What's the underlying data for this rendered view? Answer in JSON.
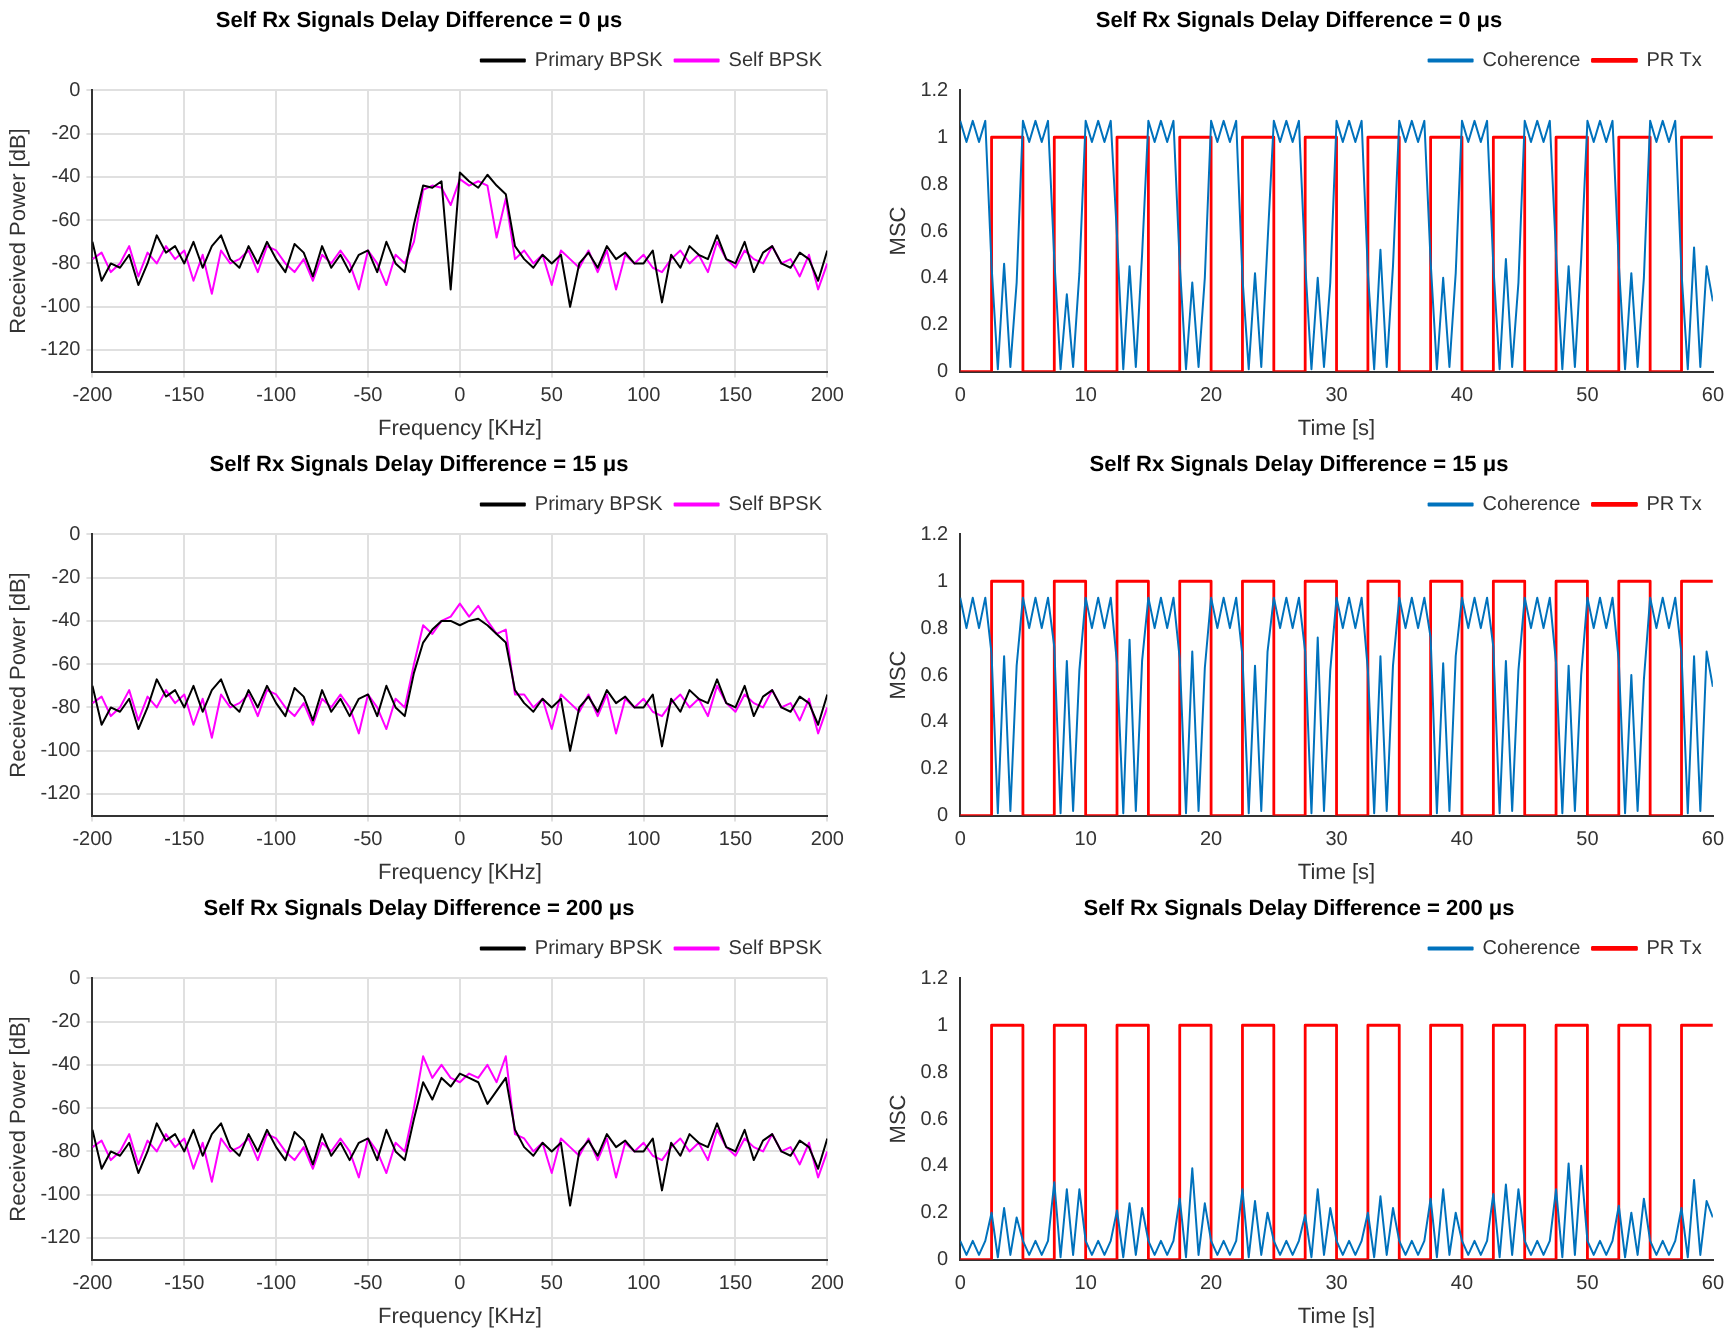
{
  "chart_data": [
    {
      "type": "line",
      "title": "Self Rx Signals Delay Difference = 0 μs",
      "xlabel": "Frequency [KHz]",
      "ylabel": "Received Power [dB]",
      "legend": "top right",
      "grid": true,
      "x": [
        -200,
        -195,
        -190,
        -185,
        -180,
        -175,
        -170,
        -165,
        -160,
        -155,
        -150,
        -145,
        -140,
        -135,
        -130,
        -125,
        -120,
        -115,
        -110,
        -105,
        -100,
        -95,
        -90,
        -85,
        -80,
        -75,
        -70,
        -65,
        -60,
        -55,
        -50,
        -45,
        -40,
        -35,
        -30,
        -25,
        -20,
        -15,
        -10,
        -5,
        0,
        5,
        10,
        15,
        20,
        25,
        30,
        35,
        40,
        45,
        50,
        55,
        60,
        65,
        70,
        75,
        80,
        85,
        90,
        95,
        100,
        105,
        110,
        115,
        120,
        125,
        130,
        135,
        140,
        145,
        150,
        155,
        160,
        165,
        170,
        175,
        180,
        185,
        190,
        195,
        200
      ],
      "xlim": [
        -200,
        200
      ],
      "xticks": [
        -200,
        -150,
        -100,
        -50,
        0,
        50,
        100,
        150,
        200
      ],
      "ylim": [
        -130,
        0
      ],
      "yticks": [
        -120,
        -100,
        -80,
        -60,
        -40,
        -20,
        0
      ],
      "series": [
        {
          "name": "Primary BPSK",
          "color": "#000000",
          "values": [
            -70,
            -88,
            -80,
            -82,
            -76,
            -90,
            -80,
            -67,
            -75,
            -72,
            -80,
            -70,
            -82,
            -72,
            -67,
            -78,
            -82,
            -72,
            -80,
            -70,
            -78,
            -84,
            -71,
            -75,
            -86,
            -72,
            -82,
            -76,
            -84,
            -76,
            -74,
            -84,
            -70,
            -80,
            -84,
            -62,
            -44,
            -45,
            -42,
            -92,
            -38,
            -42,
            -45,
            -39,
            -44,
            -48,
            -72,
            -78,
            -82,
            -76,
            -80,
            -76,
            -100,
            -80,
            -75,
            -82,
            -72,
            -78,
            -75,
            -80,
            -80,
            -74,
            -98,
            -76,
            -82,
            -72,
            -76,
            -78,
            -67,
            -78,
            -80,
            -70,
            -84,
            -75,
            -72,
            -80,
            -82,
            -75,
            -78,
            -88,
            -74
          ]
        },
        {
          "name": "Self BPSK",
          "color": "#ff00ff",
          "values": [
            -78,
            -75,
            -84,
            -80,
            -72,
            -86,
            -75,
            -80,
            -72,
            -78,
            -74,
            -88,
            -76,
            -94,
            -74,
            -80,
            -78,
            -74,
            -84,
            -72,
            -74,
            -80,
            -84,
            -78,
            -88,
            -76,
            -80,
            -74,
            -80,
            -92,
            -74,
            -80,
            -90,
            -76,
            -80,
            -70,
            -46,
            -44,
            -45,
            -53,
            -41,
            -44,
            -42,
            -44,
            -68,
            -50,
            -78,
            -74,
            -80,
            -76,
            -90,
            -74,
            -78,
            -82,
            -74,
            -84,
            -74,
            -92,
            -76,
            -80,
            -76,
            -82,
            -84,
            -78,
            -74,
            -80,
            -76,
            -84,
            -70,
            -78,
            -82,
            -74,
            -78,
            -80,
            -72,
            -80,
            -78,
            -86,
            -76,
            -92,
            -80
          ]
        }
      ]
    },
    {
      "type": "line",
      "title": "Self Rx Signals Delay Difference = 0 μs",
      "xlabel": "Time [s]",
      "ylabel": "MSC",
      "legend": "top right",
      "grid": false,
      "x": [
        0,
        0.5,
        1,
        1.5,
        2,
        2.5,
        3,
        3.5,
        4,
        4.5,
        5,
        5.5,
        6,
        6.5,
        7,
        7.5,
        8,
        8.5,
        9,
        9.5,
        10,
        10.5,
        11,
        11.5,
        12,
        12.5,
        13,
        13.5,
        14,
        14.5,
        15,
        15.5,
        16,
        16.5,
        17,
        17.5,
        18,
        18.5,
        19,
        19.5,
        20,
        20.5,
        21,
        21.5,
        22,
        22.5,
        23,
        23.5,
        24,
        24.5,
        25,
        25.5,
        26,
        26.5,
        27,
        27.5,
        28,
        28.5,
        29,
        29.5,
        30,
        30.5,
        31,
        31.5,
        32,
        32.5,
        33,
        33.5,
        34,
        34.5,
        35,
        35.5,
        36,
        36.5,
        37,
        37.5,
        38,
        38.5,
        39,
        39.5,
        40,
        40.5,
        41,
        41.5,
        42,
        42.5,
        43,
        43.5,
        44,
        44.5,
        45,
        45.5,
        46,
        46.5,
        47,
        47.5,
        48,
        48.5,
        49,
        49.5,
        50,
        50.5,
        51,
        51.5,
        52,
        52.5,
        53,
        53.5,
        54,
        54.5,
        55,
        55.5,
        56,
        56.5,
        57,
        57.5,
        58,
        58.5,
        59,
        59.5,
        60
      ],
      "xlim": [
        0,
        60
      ],
      "xticks": [
        0,
        10,
        20,
        30,
        40,
        50,
        60
      ],
      "ylim": [
        0,
        1.2
      ],
      "yticks": [
        0,
        0.2,
        0.4,
        0.6,
        0.8,
        1,
        1.2
      ],
      "series": [
        {
          "name": "Coherence",
          "color": "#0072bd",
          "values": [
            1.07,
            0.98,
            1.07,
            0.98,
            1.07,
            0.45,
            0.01,
            0.46,
            0.02,
            0.38,
            1.07,
            0.98,
            1.07,
            0.98,
            1.07,
            0.48,
            0.01,
            0.33,
            0.02,
            0.42,
            1.07,
            0.98,
            1.07,
            0.98,
            1.07,
            0.58,
            0.01,
            0.45,
            0.02,
            0.5,
            1.07,
            0.98,
            1.07,
            0.98,
            1.07,
            0.46,
            0.01,
            0.38,
            0.02,
            0.4,
            1.07,
            0.98,
            1.07,
            0.98,
            1.07,
            0.4,
            0.01,
            0.42,
            0.02,
            0.55,
            1.07,
            0.98,
            1.07,
            0.98,
            1.07,
            0.46,
            0.01,
            0.4,
            0.02,
            0.38,
            1.07,
            0.98,
            1.07,
            0.98,
            1.07,
            0.42,
            0.01,
            0.52,
            0.02,
            0.45,
            1.07,
            0.98,
            1.07,
            0.98,
            1.07,
            0.47,
            0.01,
            0.4,
            0.02,
            0.42,
            1.07,
            0.98,
            1.07,
            0.98,
            1.07,
            0.45,
            0.01,
            0.48,
            0.02,
            0.38,
            1.07,
            0.98,
            1.07,
            0.98,
            1.07,
            0.5,
            0.01,
            0.45,
            0.02,
            0.48,
            1.07,
            0.98,
            1.07,
            0.98,
            1.07,
            0.46,
            0.01,
            0.42,
            0.02,
            0.4,
            1.07,
            0.98,
            1.07,
            0.98,
            1.07,
            0.42,
            0.01,
            0.53,
            0.02,
            0.45,
            0.3
          ]
        },
        {
          "name": "PR Tx",
          "type": "step",
          "color": "#ff0000",
          "x": [
            0,
            2.5,
            5,
            7.5,
            10,
            12.5,
            15,
            17.5,
            20,
            22.5,
            25,
            27.5,
            30,
            32.5,
            35,
            37.5,
            40,
            42.5,
            45,
            47.5,
            50,
            52.5,
            55,
            57.5,
            60
          ],
          "values": [
            0,
            1,
            0,
            1,
            0,
            1,
            0,
            1,
            0,
            1,
            0,
            1,
            0,
            1,
            0,
            1,
            0,
            1,
            0,
            1,
            0,
            1,
            0,
            1,
            1
          ]
        }
      ]
    },
    {
      "type": "line",
      "title": "Self Rx Signals Delay Difference = 15 μs",
      "xlabel": "Frequency [KHz]",
      "ylabel": "Received Power [dB]",
      "legend": "top right",
      "grid": true,
      "x": [
        -200,
        -195,
        -190,
        -185,
        -180,
        -175,
        -170,
        -165,
        -160,
        -155,
        -150,
        -145,
        -140,
        -135,
        -130,
        -125,
        -120,
        -115,
        -110,
        -105,
        -100,
        -95,
        -90,
        -85,
        -80,
        -75,
        -70,
        -65,
        -60,
        -55,
        -50,
        -45,
        -40,
        -35,
        -30,
        -25,
        -20,
        -15,
        -10,
        -5,
        0,
        5,
        10,
        15,
        20,
        25,
        30,
        35,
        40,
        45,
        50,
        55,
        60,
        65,
        70,
        75,
        80,
        85,
        90,
        95,
        100,
        105,
        110,
        115,
        120,
        125,
        130,
        135,
        140,
        145,
        150,
        155,
        160,
        165,
        170,
        175,
        180,
        185,
        190,
        195,
        200
      ],
      "xlim": [
        -200,
        200
      ],
      "xticks": [
        -200,
        -150,
        -100,
        -50,
        0,
        50,
        100,
        150,
        200
      ],
      "ylim": [
        -130,
        0
      ],
      "yticks": [
        -120,
        -100,
        -80,
        -60,
        -40,
        -20,
        0
      ],
      "series": [
        {
          "name": "Primary BPSK",
          "color": "#000000",
          "values": [
            -70,
            -88,
            -80,
            -82,
            -76,
            -90,
            -80,
            -67,
            -75,
            -72,
            -80,
            -70,
            -82,
            -72,
            -67,
            -78,
            -82,
            -72,
            -80,
            -70,
            -78,
            -84,
            -71,
            -75,
            -86,
            -72,
            -82,
            -76,
            -84,
            -76,
            -74,
            -84,
            -70,
            -80,
            -84,
            -64,
            -50,
            -44,
            -40,
            -40,
            -42,
            -40,
            -39,
            -42,
            -46,
            -50,
            -72,
            -78,
            -82,
            -76,
            -80,
            -76,
            -100,
            -80,
            -75,
            -82,
            -72,
            -78,
            -75,
            -80,
            -80,
            -74,
            -98,
            -76,
            -82,
            -72,
            -76,
            -78,
            -67,
            -78,
            -80,
            -70,
            -84,
            -75,
            -72,
            -80,
            -82,
            -75,
            -78,
            -88,
            -74
          ]
        },
        {
          "name": "Self BPSK",
          "color": "#ff00ff",
          "values": [
            -78,
            -75,
            -84,
            -80,
            -72,
            -86,
            -75,
            -80,
            -72,
            -78,
            -74,
            -88,
            -76,
            -94,
            -74,
            -80,
            -78,
            -74,
            -84,
            -72,
            -74,
            -80,
            -84,
            -78,
            -88,
            -76,
            -80,
            -74,
            -80,
            -92,
            -74,
            -80,
            -90,
            -76,
            -80,
            -60,
            -42,
            -46,
            -40,
            -38,
            -32,
            -38,
            -33,
            -40,
            -46,
            -44,
            -74,
            -74,
            -80,
            -76,
            -90,
            -74,
            -78,
            -82,
            -74,
            -84,
            -74,
            -92,
            -76,
            -80,
            -76,
            -82,
            -84,
            -78,
            -74,
            -80,
            -76,
            -84,
            -70,
            -78,
            -82,
            -74,
            -78,
            -80,
            -72,
            -80,
            -78,
            -86,
            -76,
            -92,
            -80
          ]
        }
      ]
    },
    {
      "type": "line",
      "title": "Self Rx Signals Delay Difference = 15 μs",
      "xlabel": "Time [s]",
      "ylabel": "MSC",
      "legend": "top right",
      "grid": false,
      "x": [
        0,
        0.5,
        1,
        1.5,
        2,
        2.5,
        3,
        3.5,
        4,
        4.5,
        5,
        5.5,
        6,
        6.5,
        7,
        7.5,
        8,
        8.5,
        9,
        9.5,
        10,
        10.5,
        11,
        11.5,
        12,
        12.5,
        13,
        13.5,
        14,
        14.5,
        15,
        15.5,
        16,
        16.5,
        17,
        17.5,
        18,
        18.5,
        19,
        19.5,
        20,
        20.5,
        21,
        21.5,
        22,
        22.5,
        23,
        23.5,
        24,
        24.5,
        25,
        25.5,
        26,
        26.5,
        27,
        27.5,
        28,
        28.5,
        29,
        29.5,
        30,
        30.5,
        31,
        31.5,
        32,
        32.5,
        33,
        33.5,
        34,
        34.5,
        35,
        35.5,
        36,
        36.5,
        37,
        37.5,
        38,
        38.5,
        39,
        39.5,
        40,
        40.5,
        41,
        41.5,
        42,
        42.5,
        43,
        43.5,
        44,
        44.5,
        45,
        45.5,
        46,
        46.5,
        47,
        47.5,
        48,
        48.5,
        49,
        49.5,
        50,
        50.5,
        51,
        51.5,
        52,
        52.5,
        53,
        53.5,
        54,
        54.5,
        55,
        55.5,
        56,
        56.5,
        57,
        57.5,
        58,
        58.5,
        59,
        59.5,
        60
      ],
      "xlim": [
        0,
        60
      ],
      "xticks": [
        0,
        10,
        20,
        30,
        40,
        50,
        60
      ],
      "ylim": [
        0,
        1.2
      ],
      "yticks": [
        0,
        0.2,
        0.4,
        0.6,
        0.8,
        1,
        1.2
      ],
      "series": [
        {
          "name": "Coherence",
          "color": "#0072bd",
          "values": [
            0.93,
            0.8,
            0.93,
            0.8,
            0.93,
            0.69,
            0.01,
            0.68,
            0.02,
            0.64,
            0.93,
            0.8,
            0.93,
            0.8,
            0.93,
            0.72,
            0.01,
            0.66,
            0.02,
            0.62,
            0.93,
            0.8,
            0.93,
            0.8,
            0.93,
            0.65,
            0.01,
            0.75,
            0.02,
            0.66,
            0.93,
            0.8,
            0.93,
            0.8,
            0.93,
            0.67,
            0.01,
            0.7,
            0.02,
            0.63,
            0.93,
            0.8,
            0.93,
            0.8,
            0.93,
            0.68,
            0.01,
            0.64,
            0.02,
            0.7,
            0.93,
            0.8,
            0.93,
            0.8,
            0.93,
            0.7,
            0.01,
            0.76,
            0.02,
            0.62,
            0.93,
            0.8,
            0.93,
            0.8,
            0.93,
            0.62,
            0.01,
            0.68,
            0.02,
            0.64,
            0.93,
            0.8,
            0.93,
            0.8,
            0.93,
            0.76,
            0.01,
            0.65,
            0.02,
            0.68,
            0.93,
            0.8,
            0.93,
            0.8,
            0.93,
            0.72,
            0.01,
            0.66,
            0.02,
            0.62,
            0.93,
            0.8,
            0.93,
            0.8,
            0.93,
            0.65,
            0.01,
            0.64,
            0.02,
            0.6,
            0.93,
            0.8,
            0.93,
            0.8,
            0.93,
            0.66,
            0.01,
            0.6,
            0.02,
            0.58,
            0.93,
            0.8,
            0.93,
            0.8,
            0.93,
            0.69,
            0.01,
            0.68,
            0.02,
            0.7,
            0.55
          ]
        },
        {
          "name": "PR Tx",
          "type": "step",
          "color": "#ff0000",
          "x": [
            0,
            2.5,
            5,
            7.5,
            10,
            12.5,
            15,
            17.5,
            20,
            22.5,
            25,
            27.5,
            30,
            32.5,
            35,
            37.5,
            40,
            42.5,
            45,
            47.5,
            50,
            52.5,
            55,
            57.5,
            60
          ],
          "values": [
            0,
            1,
            0,
            1,
            0,
            1,
            0,
            1,
            0,
            1,
            0,
            1,
            0,
            1,
            0,
            1,
            0,
            1,
            0,
            1,
            0,
            1,
            0,
            1,
            1
          ]
        }
      ]
    },
    {
      "type": "line",
      "title": "Self Rx Signals Delay Difference = 200 μs",
      "xlabel": "Frequency [KHz]",
      "ylabel": "Received Power [dB]",
      "legend": "top right",
      "grid": true,
      "x": [
        -200,
        -195,
        -190,
        -185,
        -180,
        -175,
        -170,
        -165,
        -160,
        -155,
        -150,
        -145,
        -140,
        -135,
        -130,
        -125,
        -120,
        -115,
        -110,
        -105,
        -100,
        -95,
        -90,
        -85,
        -80,
        -75,
        -70,
        -65,
        -60,
        -55,
        -50,
        -45,
        -40,
        -35,
        -30,
        -25,
        -20,
        -15,
        -10,
        -5,
        0,
        5,
        10,
        15,
        20,
        25,
        30,
        35,
        40,
        45,
        50,
        55,
        60,
        65,
        70,
        75,
        80,
        85,
        90,
        95,
        100,
        105,
        110,
        115,
        120,
        125,
        130,
        135,
        140,
        145,
        150,
        155,
        160,
        165,
        170,
        175,
        180,
        185,
        190,
        195,
        200
      ],
      "xlim": [
        -200,
        200
      ],
      "xticks": [
        -200,
        -150,
        -100,
        -50,
        0,
        50,
        100,
        150,
        200
      ],
      "ylim": [
        -130,
        0
      ],
      "yticks": [
        -120,
        -100,
        -80,
        -60,
        -40,
        -20,
        0
      ],
      "series": [
        {
          "name": "Primary BPSK",
          "color": "#000000",
          "values": [
            -70,
            -88,
            -80,
            -82,
            -76,
            -90,
            -80,
            -67,
            -75,
            -72,
            -80,
            -70,
            -82,
            -72,
            -67,
            -78,
            -82,
            -72,
            -80,
            -70,
            -78,
            -84,
            -71,
            -75,
            -86,
            -72,
            -82,
            -76,
            -84,
            -76,
            -74,
            -84,
            -70,
            -80,
            -84,
            -65,
            -48,
            -56,
            -46,
            -50,
            -44,
            -46,
            -48,
            -58,
            -52,
            -46,
            -70,
            -78,
            -82,
            -76,
            -80,
            -76,
            -105,
            -80,
            -75,
            -82,
            -72,
            -78,
            -75,
            -80,
            -80,
            -74,
            -98,
            -76,
            -82,
            -72,
            -76,
            -78,
            -67,
            -78,
            -80,
            -70,
            -84,
            -75,
            -72,
            -80,
            -82,
            -75,
            -78,
            -88,
            -74
          ]
        },
        {
          "name": "Self BPSK",
          "color": "#ff00ff",
          "values": [
            -78,
            -75,
            -84,
            -80,
            -72,
            -86,
            -75,
            -80,
            -72,
            -78,
            -74,
            -88,
            -76,
            -94,
            -74,
            -80,
            -78,
            -74,
            -84,
            -72,
            -74,
            -80,
            -84,
            -78,
            -88,
            -76,
            -80,
            -74,
            -80,
            -92,
            -74,
            -80,
            -90,
            -76,
            -80,
            -60,
            -36,
            -46,
            -40,
            -46,
            -48,
            -44,
            -46,
            -40,
            -48,
            -36,
            -72,
            -74,
            -80,
            -76,
            -90,
            -74,
            -78,
            -82,
            -74,
            -84,
            -74,
            -92,
            -76,
            -80,
            -76,
            -82,
            -84,
            -78,
            -74,
            -80,
            -76,
            -84,
            -70,
            -78,
            -82,
            -74,
            -78,
            -80,
            -72,
            -80,
            -78,
            -86,
            -76,
            -92,
            -80
          ]
        }
      ]
    },
    {
      "type": "line",
      "title": "Self Rx Signals Delay Difference = 200 μs",
      "xlabel": "Time [s]",
      "ylabel": "MSC",
      "legend": "top right",
      "grid": false,
      "x": [
        0,
        0.5,
        1,
        1.5,
        2,
        2.5,
        3,
        3.5,
        4,
        4.5,
        5,
        5.5,
        6,
        6.5,
        7,
        7.5,
        8,
        8.5,
        9,
        9.5,
        10,
        10.5,
        11,
        11.5,
        12,
        12.5,
        13,
        13.5,
        14,
        14.5,
        15,
        15.5,
        16,
        16.5,
        17,
        17.5,
        18,
        18.5,
        19,
        19.5,
        20,
        20.5,
        21,
        21.5,
        22,
        22.5,
        23,
        23.5,
        24,
        24.5,
        25,
        25.5,
        26,
        26.5,
        27,
        27.5,
        28,
        28.5,
        29,
        29.5,
        30,
        30.5,
        31,
        31.5,
        32,
        32.5,
        33,
        33.5,
        34,
        34.5,
        35,
        35.5,
        36,
        36.5,
        37,
        37.5,
        38,
        38.5,
        39,
        39.5,
        40,
        40.5,
        41,
        41.5,
        42,
        42.5,
        43,
        43.5,
        44,
        44.5,
        45,
        45.5,
        46,
        46.5,
        47,
        47.5,
        48,
        48.5,
        49,
        49.5,
        50,
        50.5,
        51,
        51.5,
        52,
        52.5,
        53,
        53.5,
        54,
        54.5,
        55,
        55.5,
        56,
        56.5,
        57,
        57.5,
        58,
        58.5,
        59,
        59.5,
        60
      ],
      "xlim": [
        0,
        60
      ],
      "xticks": [
        0,
        10,
        20,
        30,
        40,
        50,
        60
      ],
      "ylim": [
        0,
        1.2
      ],
      "yticks": [
        0,
        0.2,
        0.4,
        0.6,
        0.8,
        1,
        1.2
      ],
      "series": [
        {
          "name": "Coherence",
          "color": "#0072bd",
          "values": [
            0.08,
            0.02,
            0.08,
            0.02,
            0.08,
            0.2,
            0.01,
            0.22,
            0.02,
            0.18,
            0.08,
            0.02,
            0.08,
            0.02,
            0.08,
            0.33,
            0.01,
            0.3,
            0.02,
            0.3,
            0.08,
            0.02,
            0.08,
            0.02,
            0.08,
            0.21,
            0.01,
            0.24,
            0.02,
            0.22,
            0.08,
            0.02,
            0.08,
            0.02,
            0.08,
            0.26,
            0.01,
            0.39,
            0.02,
            0.24,
            0.08,
            0.02,
            0.08,
            0.02,
            0.08,
            0.3,
            0.01,
            0.25,
            0.02,
            0.2,
            0.08,
            0.02,
            0.08,
            0.02,
            0.08,
            0.19,
            0.01,
            0.3,
            0.02,
            0.22,
            0.08,
            0.02,
            0.08,
            0.02,
            0.08,
            0.2,
            0.01,
            0.27,
            0.02,
            0.22,
            0.08,
            0.02,
            0.08,
            0.02,
            0.08,
            0.26,
            0.01,
            0.3,
            0.02,
            0.2,
            0.08,
            0.02,
            0.08,
            0.02,
            0.08,
            0.28,
            0.01,
            0.32,
            0.02,
            0.3,
            0.08,
            0.02,
            0.08,
            0.02,
            0.08,
            0.3,
            0.01,
            0.41,
            0.02,
            0.4,
            0.08,
            0.02,
            0.08,
            0.02,
            0.08,
            0.23,
            0.01,
            0.2,
            0.02,
            0.26,
            0.08,
            0.02,
            0.08,
            0.02,
            0.08,
            0.22,
            0.01,
            0.34,
            0.02,
            0.25,
            0.18
          ]
        },
        {
          "name": "PR Tx",
          "type": "step",
          "color": "#ff0000",
          "x": [
            0,
            2.5,
            5,
            7.5,
            10,
            12.5,
            15,
            17.5,
            20,
            22.5,
            25,
            27.5,
            30,
            32.5,
            35,
            37.5,
            40,
            42.5,
            45,
            47.5,
            50,
            52.5,
            55,
            57.5,
            60
          ],
          "values": [
            0,
            1,
            0,
            1,
            0,
            1,
            0,
            1,
            0,
            1,
            0,
            1,
            0,
            1,
            0,
            1,
            0,
            1,
            0,
            1,
            0,
            1,
            0,
            1,
            1
          ]
        }
      ]
    }
  ]
}
